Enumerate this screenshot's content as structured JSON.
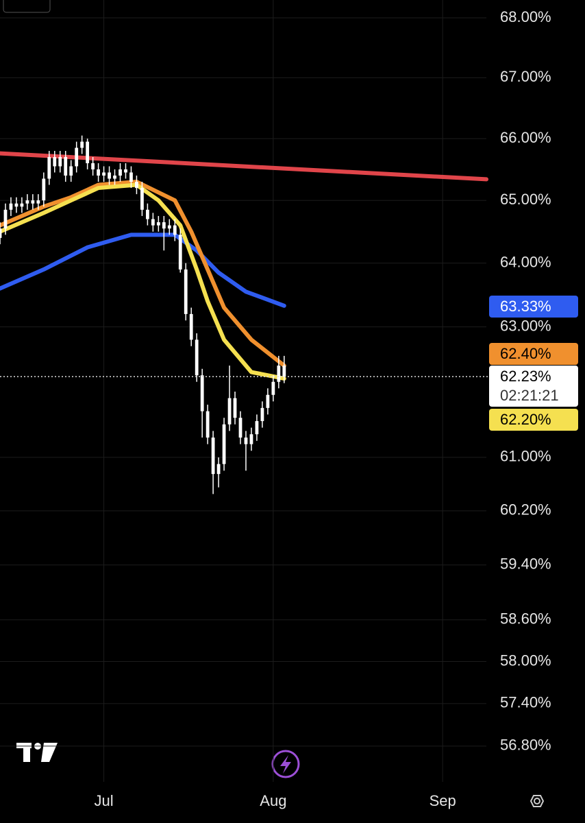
{
  "chart_data": {
    "type": "candlestick",
    "log_scale": true,
    "grid": true,
    "xlim": [
      -19,
      70
    ],
    "ylim": [
      56.3,
      68.3
    ],
    "xticks": [
      {
        "value": 0,
        "label": "Jul"
      },
      {
        "value": 31,
        "label": "Aug"
      },
      {
        "value": 62,
        "label": "Sep"
      }
    ],
    "yticks": [
      {
        "value": 68,
        "label": "68.00%"
      },
      {
        "value": 67,
        "label": "67.00%"
      },
      {
        "value": 66,
        "label": "66.00%"
      },
      {
        "value": 65,
        "label": "65.00%"
      },
      {
        "value": 64,
        "label": "64.00%"
      },
      {
        "value": 63,
        "label": "63.00%"
      },
      {
        "value": 61,
        "label": "61.00%"
      },
      {
        "value": 60.2,
        "label": "60.20%"
      },
      {
        "value": 59.4,
        "label": "59.40%"
      },
      {
        "value": 58.6,
        "label": "58.60%"
      },
      {
        "value": 58,
        "label": "58.00%"
      },
      {
        "value": 57.4,
        "label": "57.40%"
      },
      {
        "value": 56.8,
        "label": "56.80%"
      }
    ],
    "candles": {
      "color": "#ffffff",
      "x": [
        -19,
        -18,
        -17,
        -16,
        -15,
        -14,
        -13,
        -12,
        -11,
        -10,
        -9,
        -8,
        -7,
        -6,
        -5,
        -4,
        -3,
        -2,
        -1,
        0,
        1,
        2,
        3,
        4,
        5,
        6,
        7,
        8,
        9,
        10,
        11,
        12,
        13,
        14,
        15,
        16,
        17,
        18,
        19,
        20,
        21,
        22,
        23,
        24,
        25,
        26,
        27,
        28,
        29,
        30,
        31,
        32,
        33
      ],
      "open": [
        64.4,
        64.55,
        64.85,
        64.95,
        64.9,
        64.95,
        65.0,
        64.95,
        65.0,
        65.35,
        65.7,
        65.55,
        65.7,
        65.4,
        65.55,
        65.85,
        65.95,
        65.6,
        65.5,
        65.4,
        65.45,
        65.35,
        65.4,
        65.5,
        65.45,
        65.3,
        65.2,
        64.85,
        64.7,
        64.6,
        64.65,
        64.55,
        64.6,
        64.45,
        63.9,
        63.2,
        62.8,
        62.25,
        61.7,
        61.3,
        60.75,
        60.9,
        61.5,
        61.9,
        61.6,
        61.3,
        61.2,
        61.35,
        61.55,
        61.75,
        61.95,
        62.15,
        62.4
      ],
      "high": [
        64.65,
        64.95,
        65.05,
        65.05,
        65.05,
        65.1,
        65.1,
        65.1,
        65.45,
        65.8,
        65.8,
        65.8,
        65.8,
        65.65,
        65.95,
        66.05,
        66.0,
        65.7,
        65.6,
        65.55,
        65.55,
        65.5,
        65.6,
        65.6,
        65.55,
        65.4,
        65.3,
        64.95,
        64.8,
        64.75,
        64.75,
        64.7,
        64.7,
        64.55,
        64.0,
        63.3,
        62.9,
        62.35,
        61.8,
        61.4,
        61.0,
        61.6,
        62.4,
        62.0,
        61.7,
        61.4,
        61.45,
        61.65,
        61.85,
        62.05,
        62.25,
        62.55,
        62.55
      ],
      "low": [
        64.3,
        64.45,
        64.75,
        64.8,
        64.8,
        64.85,
        64.85,
        64.85,
        64.9,
        65.25,
        65.45,
        65.45,
        65.3,
        65.3,
        65.45,
        65.75,
        65.5,
        65.4,
        65.3,
        65.3,
        65.25,
        65.25,
        65.3,
        65.35,
        65.2,
        65.1,
        64.75,
        64.6,
        64.5,
        64.5,
        64.2,
        64.45,
        64.35,
        63.85,
        63.1,
        62.7,
        62.15,
        61.3,
        61.2,
        60.45,
        60.55,
        60.8,
        61.4,
        61.5,
        61.2,
        60.8,
        61.1,
        61.25,
        61.45,
        61.65,
        61.85,
        62.05,
        62.13
      ],
      "close": [
        64.55,
        64.85,
        64.95,
        64.9,
        64.95,
        65.0,
        64.95,
        65.0,
        65.35,
        65.7,
        65.55,
        65.7,
        65.4,
        65.55,
        65.85,
        65.95,
        65.6,
        65.5,
        65.4,
        65.45,
        65.35,
        65.4,
        65.5,
        65.45,
        65.3,
        65.2,
        64.85,
        64.7,
        64.6,
        64.65,
        64.55,
        64.6,
        64.45,
        63.9,
        63.2,
        62.8,
        62.25,
        61.7,
        61.3,
        60.75,
        60.9,
        61.5,
        61.9,
        61.6,
        61.3,
        61.2,
        61.35,
        61.55,
        61.75,
        61.95,
        62.15,
        62.4,
        62.23
      ]
    },
    "series": [
      {
        "color": "#e0454a",
        "x": [
          -19,
          70
        ],
        "values": [
          65.76,
          65.34
        ]
      },
      {
        "color": "#2f5cf0",
        "x": [
          -19,
          -11,
          -3,
          5,
          13,
          17,
          21,
          26,
          33
        ],
        "values": [
          63.6,
          63.9,
          64.25,
          64.45,
          64.45,
          64.2,
          63.85,
          63.55,
          63.33
        ]
      },
      {
        "color": "#f0902e",
        "x": [
          -19,
          -11,
          -6,
          -1,
          6,
          13,
          16,
          19,
          22,
          27,
          33
        ],
        "values": [
          64.6,
          64.9,
          65.05,
          65.25,
          65.3,
          65.0,
          64.5,
          63.9,
          63.3,
          62.8,
          62.4
        ]
      },
      {
        "color": "#f5e050",
        "x": [
          -19,
          -11,
          -6,
          -1,
          6,
          10,
          14,
          17,
          19,
          22,
          27,
          33
        ],
        "values": [
          64.5,
          64.8,
          65.0,
          65.2,
          65.25,
          65.0,
          64.6,
          63.9,
          63.4,
          62.8,
          62.3,
          62.2
        ]
      }
    ],
    "price_labels": [
      {
        "value": 63.33,
        "label": "63.33%",
        "color": "#2f5cf0"
      },
      {
        "value": 62.4,
        "label": "62.40%",
        "color": "#f0902e"
      },
      {
        "value": 62.23,
        "label": "62.23%",
        "color": "#ffffff",
        "countdown": "02:21:21"
      },
      {
        "value": 62.2,
        "label": "62.20%",
        "color": "#f5e050"
      }
    ]
  }
}
